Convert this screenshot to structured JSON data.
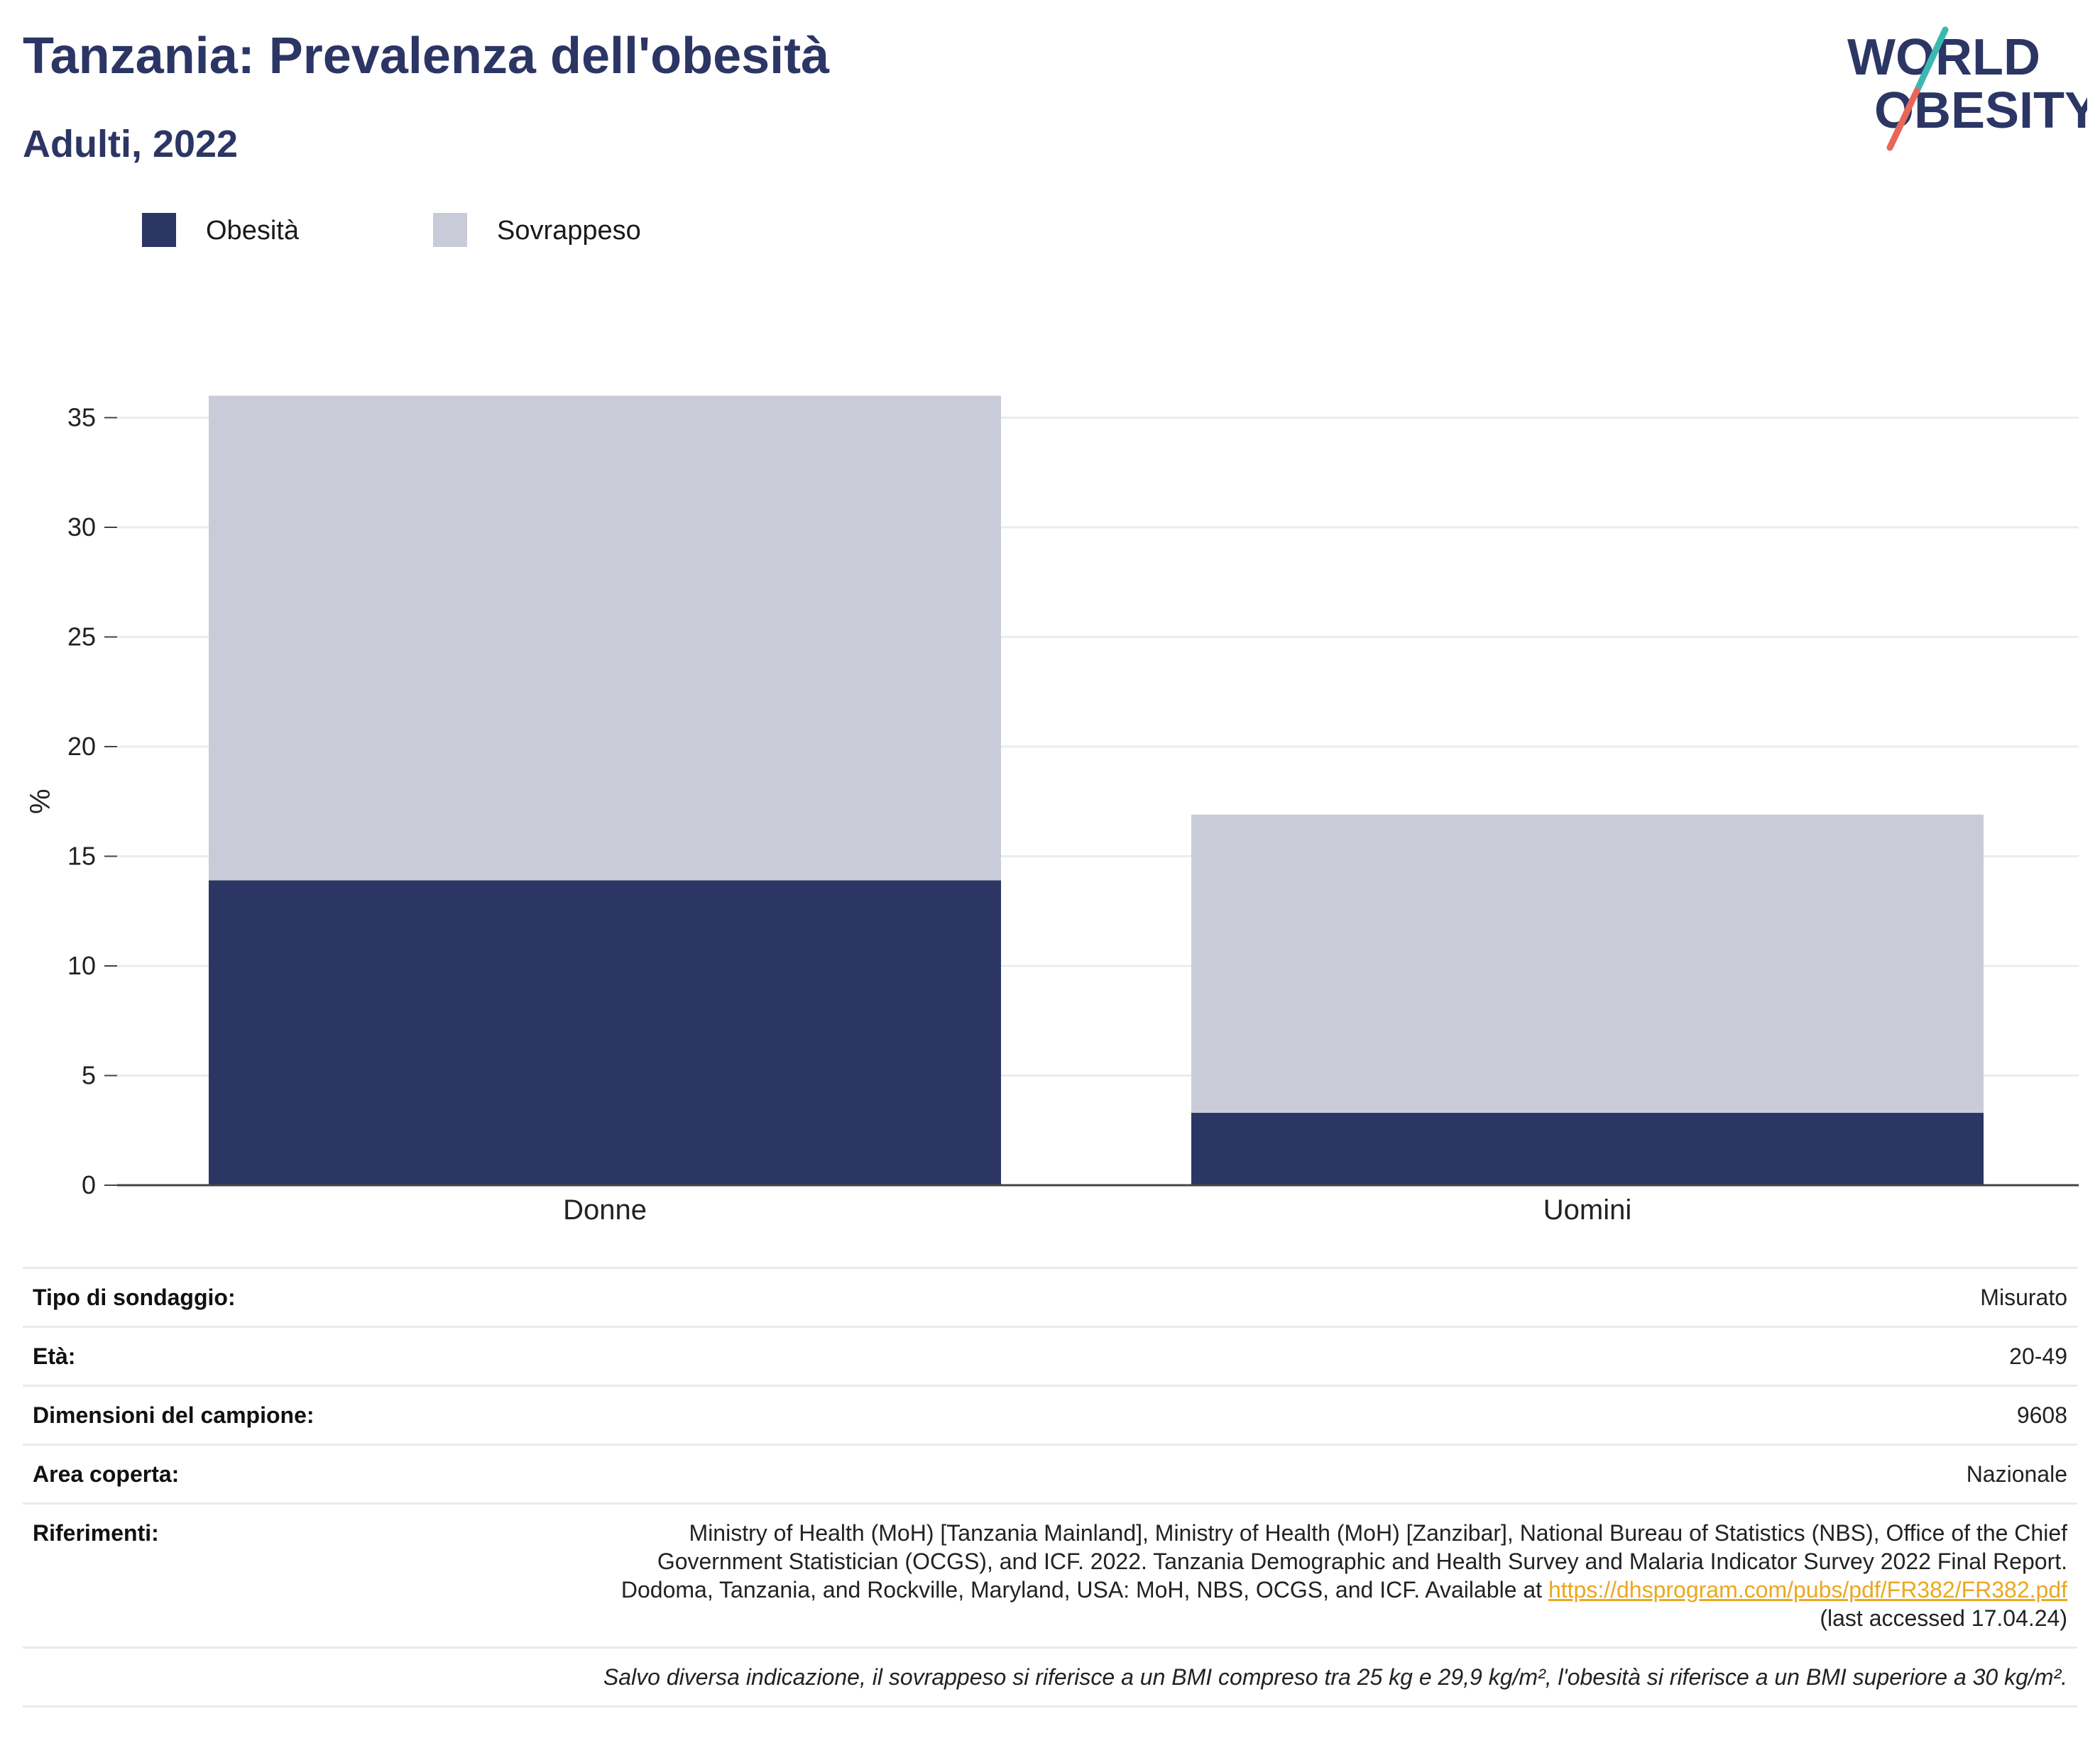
{
  "header": {
    "title": "Tanzania: Prevalenza dell'obesità",
    "subtitle": "Adulti, 2022"
  },
  "logo": {
    "line1": "WORLD",
    "line2": "OBESITY",
    "colors": {
      "text": "#2b3664",
      "slash_top": "#3cb8b2",
      "slash_bottom": "#e8675a"
    }
  },
  "legend": [
    {
      "label": "Obesità",
      "color": "#2b3664"
    },
    {
      "label": "Sovrappeso",
      "color": "#c9ccd8"
    }
  ],
  "chart_data": {
    "type": "bar",
    "stacked": true,
    "categories": [
      "Donne",
      "Uomini"
    ],
    "series": [
      {
        "name": "Obesità",
        "values": [
          13.9,
          3.3
        ],
        "color": "#2b3664"
      },
      {
        "name": "Sovrappeso",
        "values": [
          22.1,
          13.6
        ],
        "color": "#c9ccd8"
      }
    ],
    "ylabel": "%",
    "ylim": [
      0,
      36.5
    ],
    "yticks": [
      0,
      5,
      10,
      15,
      20,
      25,
      30,
      35
    ],
    "grid": true,
    "legend_position": "top-left"
  },
  "info": {
    "rows": [
      {
        "key": "Tipo di sondaggio:",
        "value": "Misurato"
      },
      {
        "key": "Età:",
        "value": "20-49"
      },
      {
        "key": "Dimensioni del campione:",
        "value": "9608"
      },
      {
        "key": "Area coperta:",
        "value": "Nazionale"
      }
    ],
    "references": {
      "key": "Riferimenti:",
      "text": "Ministry of Health (MoH) [Tanzania Mainland], Ministry of Health (MoH) [Zanzibar], National Bureau of Statistics (NBS), Office of the Chief Government Statistician (OCGS), and ICF. 2022. Tanzania Demographic and Health Survey and Malaria Indicator Survey 2022 Final Report. Dodoma, Tanzania, and Rockville, Maryland, USA: MoH, NBS, OCGS, and ICF. Available at",
      "link": "https://dhsprogram.com/pubs/pdf/FR382/FR382.pdf",
      "suffix": "(last accessed 17.04.24)"
    },
    "note": "Salvo diversa indicazione, il sovrappeso si riferisce a un BMI compreso tra 25 kg e 29,9 kg/m², l'obesità si riferisce a un BMI superiore a 30 kg/m²."
  }
}
